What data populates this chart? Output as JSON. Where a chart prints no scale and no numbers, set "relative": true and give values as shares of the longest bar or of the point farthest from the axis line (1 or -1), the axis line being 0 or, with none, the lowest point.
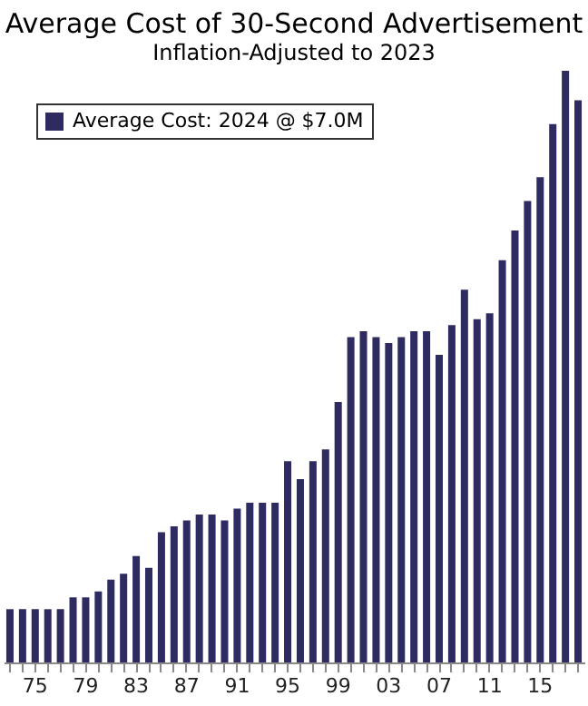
{
  "chart_data": {
    "type": "bar",
    "title": "Average Cost of 30-Second Advertisement",
    "subtitle": "Inflation-Adjusted to 2023",
    "categories": [
      null,
      null,
      "75",
      null,
      null,
      null,
      "79",
      null,
      null,
      null,
      "83",
      null,
      null,
      null,
      "87",
      null,
      null,
      null,
      "91",
      null,
      null,
      null,
      "95",
      null,
      null,
      null,
      "99",
      null,
      null,
      null,
      "03",
      null,
      null,
      null,
      "07",
      null,
      null,
      null,
      "11",
      null,
      null,
      null,
      "15",
      null,
      null,
      null
    ],
    "relative": true,
    "series": [
      {
        "name": "Average Cost: 2024 @ $7.0M",
        "color": "#2d2b5f",
        "values": [
          0.09,
          0.09,
          0.09,
          0.09,
          0.09,
          0.11,
          0.11,
          0.12,
          0.14,
          0.15,
          0.18,
          0.16,
          0.22,
          0.23,
          0.24,
          0.25,
          0.25,
          0.24,
          0.26,
          0.27,
          0.27,
          0.27,
          0.34,
          0.31,
          0.34,
          0.36,
          0.44,
          0.55,
          0.56,
          0.55,
          0.54,
          0.55,
          0.56,
          0.56,
          0.52,
          0.57,
          0.63,
          0.58,
          0.59,
          0.68,
          0.73,
          0.78,
          0.82,
          0.91,
          1,
          0.95
        ]
      }
    ],
    "legend": "top left"
  }
}
